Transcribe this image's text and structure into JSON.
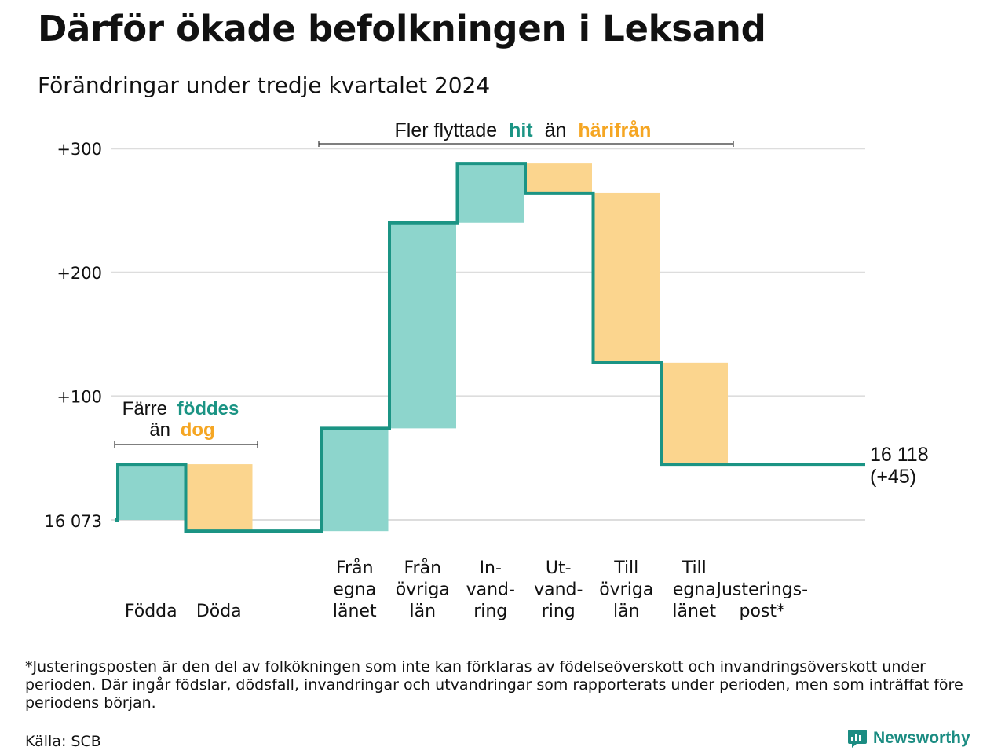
{
  "title": "Därför ökade befolkningen i Leksand",
  "subtitle": "Förändringar under tredje kvartalet 2024",
  "colors": {
    "increase": "#8dd5cc",
    "decrease": "#fbd58e",
    "line": "#1b9484",
    "accent_teal": "#1b9484",
    "accent_orange": "#f5a623",
    "grid": "#dddddd"
  },
  "chart_data": {
    "type": "waterfall",
    "base_label": "16 073",
    "base_value": 16073,
    "end_label_1": "16 118",
    "end_label_2": "(+45)",
    "y_ticks": [
      "+300",
      "+200",
      "+100"
    ],
    "y_tick_values": [
      300,
      200,
      100
    ],
    "ylim": [
      -15,
      300
    ],
    "grid": true,
    "categories": [
      {
        "label": [
          "Födda"
        ],
        "change": 45
      },
      {
        "label": [
          "Döda"
        ],
        "change": -54
      },
      {
        "label": [],
        "change": 0
      },
      {
        "label": [
          "Från",
          "egna",
          "länet"
        ],
        "change": 83
      },
      {
        "label": [
          "Från",
          "övriga",
          "län"
        ],
        "change": 166
      },
      {
        "label": [
          "In-",
          "vand-",
          "ring"
        ],
        "change": 48
      },
      {
        "label": [
          "Ut-",
          "vand-",
          "ring"
        ],
        "change": -24
      },
      {
        "label": [
          "Till",
          "övriga",
          "län"
        ],
        "change": -137
      },
      {
        "label": [
          "Till",
          "egna",
          "länet"
        ],
        "change": -82
      },
      {
        "label": [
          "Justerings-",
          "post*"
        ],
        "change": 0
      }
    ]
  },
  "annotations": {
    "births": {
      "word1": "Färre",
      "word2": "föddes",
      "word3": "än",
      "word4": "dog"
    },
    "moves": {
      "word1": "Fler flyttade",
      "word2": "hit",
      "word3": "än",
      "word4": "härifrån"
    }
  },
  "footnote": "*Justeringsposten är den del av folkökningen som inte kan förklaras av födelseöverskott och invandringsöverskott under perioden. Där ingår födslar, dödsfall, invandringar och utvandringar som rapporterats under perioden, men som inträffat före periodens början.",
  "source": "Källa: SCB",
  "brand": "Newsworthy"
}
